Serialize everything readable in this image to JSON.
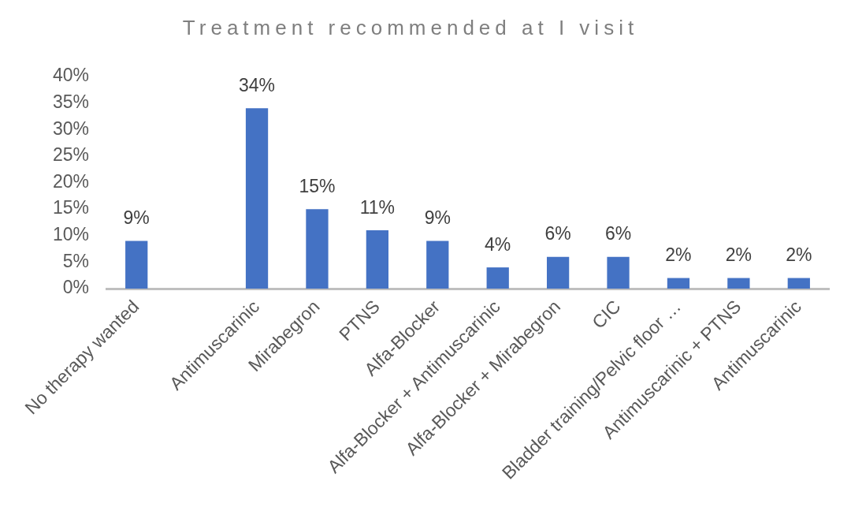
{
  "chart_data": {
    "type": "bar",
    "title": "Treatment recommended at I visit",
    "categories": [
      "No therapy wanted",
      null,
      "Antimuscarinic",
      "Mirabegron",
      "PTNS",
      "Alfa-Blocker",
      "Alfa-Blocker + Antimuscarinic",
      "Alfa-Blocker + Mirabegron",
      "CIC",
      "Bladder training/Pelvic floor …",
      "Antimuscarinic + PTNS",
      "Antimuscarinic"
    ],
    "values": [
      9,
      null,
      34,
      15,
      11,
      9,
      4,
      6,
      6,
      2,
      2,
      2
    ],
    "value_labels": [
      "9%",
      null,
      "34%",
      "15%",
      "11%",
      "9%",
      "4%",
      "6%",
      "6%",
      "2%",
      "2%",
      "2%"
    ],
    "color": "#4472c4",
    "ylim": [
      0,
      40
    ],
    "yticks": [
      {
        "value": 0,
        "label": "0%"
      },
      {
        "value": 5,
        "label": "5%"
      },
      {
        "value": 10,
        "label": "10%"
      },
      {
        "value": 15,
        "label": "15%"
      },
      {
        "value": 20,
        "label": "20%"
      },
      {
        "value": 25,
        "label": "25%"
      },
      {
        "value": 30,
        "label": "30%"
      },
      {
        "value": 35,
        "label": "35%"
      },
      {
        "value": 40,
        "label": "40%"
      }
    ],
    "grid": false,
    "legend": false
  }
}
